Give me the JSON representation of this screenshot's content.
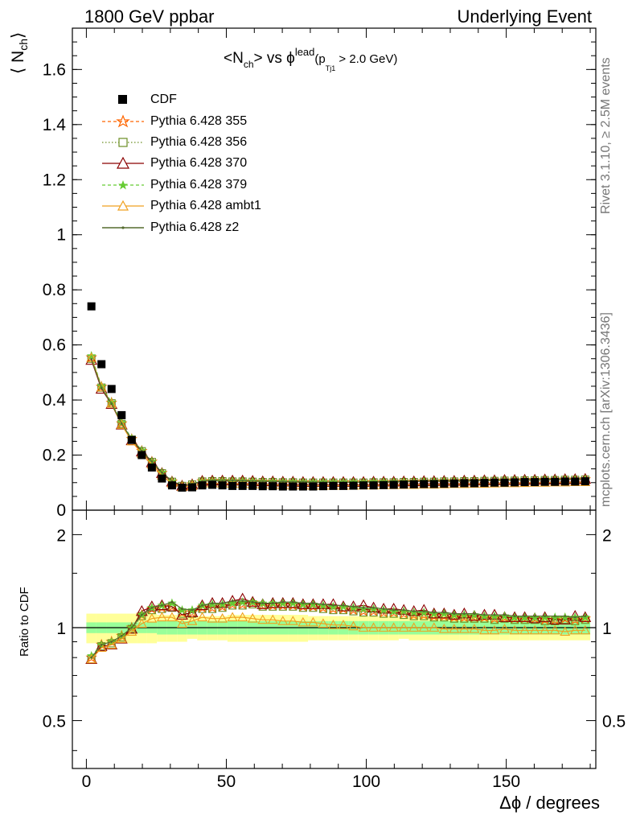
{
  "header": {
    "left_label": "1800 GeV ppbar",
    "right_label": "Underlying Event"
  },
  "side_labels": {
    "rivet": "Rivet 3.1.10, ≥ 2.5M events",
    "mcplots": "mcplots.cern.ch [arXiv:1306.3436]"
  },
  "title": {
    "lhs": "<N",
    "lhs_sub": "ch",
    "mid": "> vs ϕ",
    "mid_sup": "lead",
    "paren_open": "(p",
    "paren_sub": "Tj1",
    "paren_rest": " > 2.0 GeV)"
  },
  "axes": {
    "ylabel_main": "⟨ N",
    "ylabel_main_sub": "ch",
    "ylabel_main_close": "⟩",
    "ylabel_ratio": "Ratio to CDF",
    "xlabel": "Δϕ / degrees"
  },
  "colors": {
    "cdf": "#000000",
    "p355": "#ff6600",
    "p356": "#6b8e23",
    "p370": "#8b0000",
    "p379": "#66cc33",
    "pambt1": "#f0a020",
    "pz2": "#556b2f",
    "band_inner": "#99ff99",
    "band_outer": "#ffff99"
  },
  "chart_data": [
    {
      "type": "scatter",
      "panel": "main",
      "xlim": [
        -5,
        182
      ],
      "ylim": [
        0,
        1.75
      ],
      "yticks": [
        0,
        0.2,
        0.4,
        0.6,
        0.8,
        1,
        1.2,
        1.4,
        1.6
      ],
      "ytick_labels": [
        "0",
        "0.2",
        "0.4",
        "0.6",
        "0.8",
        "1",
        "1.2",
        "1.4",
        "1.6"
      ],
      "x": [
        1.8,
        5.4,
        9,
        12.6,
        16.2,
        19.8,
        23.4,
        27,
        30.6,
        34.2,
        37.8,
        41.4,
        45,
        48.6,
        52.2,
        55.8,
        59.4,
        63,
        66.6,
        70.2,
        73.8,
        77.4,
        81,
        84.6,
        88.2,
        91.8,
        95.4,
        99,
        102.6,
        106.2,
        109.8,
        113.4,
        117,
        120.6,
        124.2,
        127.8,
        131.4,
        135,
        138.6,
        142.2,
        145.8,
        149.4,
        153,
        156.6,
        160.2,
        163.8,
        167.4,
        171,
        174.6,
        178.2
      ],
      "series": [
        {
          "name": "CDF",
          "values": [
            0.74,
            0.53,
            0.44,
            0.345,
            0.255,
            0.2,
            0.155,
            0.115,
            0.09,
            0.082,
            0.083,
            0.09,
            0.092,
            0.09,
            0.088,
            0.088,
            0.088,
            0.087,
            0.087,
            0.086,
            0.086,
            0.086,
            0.086,
            0.087,
            0.088,
            0.088,
            0.089,
            0.09,
            0.09,
            0.091,
            0.092,
            0.093,
            0.094,
            0.095,
            0.095,
            0.096,
            0.097,
            0.098,
            0.098,
            0.099,
            0.1,
            0.1,
            0.101,
            0.102,
            0.102,
            0.103,
            0.103,
            0.104,
            0.104,
            0.105
          ]
        },
        {
          "name": "Pythia 6.428 355",
          "values": [
            0.555,
            0.448,
            0.39,
            0.315,
            0.258,
            0.215,
            0.176,
            0.135,
            0.104,
            0.089,
            0.094,
            0.105,
            0.106,
            0.106,
            0.105,
            0.105,
            0.104,
            0.103,
            0.103,
            0.102,
            0.102,
            0.101,
            0.101,
            0.101,
            0.101,
            0.101,
            0.101,
            0.101,
            0.102,
            0.102,
            0.102,
            0.103,
            0.103,
            0.104,
            0.104,
            0.105,
            0.105,
            0.106,
            0.106,
            0.107,
            0.107,
            0.108,
            0.108,
            0.109,
            0.109,
            0.11,
            0.11,
            0.111,
            0.111,
            0.112
          ]
        },
        {
          "name": "Pythia 6.428 356",
          "values": [
            0.55,
            0.445,
            0.388,
            0.313,
            0.256,
            0.214,
            0.175,
            0.134,
            0.103,
            0.088,
            0.093,
            0.104,
            0.105,
            0.105,
            0.104,
            0.104,
            0.103,
            0.102,
            0.102,
            0.101,
            0.101,
            0.1,
            0.1,
            0.1,
            0.1,
            0.1,
            0.1,
            0.1,
            0.101,
            0.101,
            0.101,
            0.102,
            0.102,
            0.103,
            0.103,
            0.104,
            0.104,
            0.105,
            0.105,
            0.106,
            0.106,
            0.107,
            0.107,
            0.108,
            0.108,
            0.109,
            0.109,
            0.11,
            0.11,
            0.111
          ]
        },
        {
          "name": "Pythia 6.428 370",
          "values": [
            0.545,
            0.44,
            0.385,
            0.31,
            0.253,
            0.212,
            0.173,
            0.134,
            0.103,
            0.088,
            0.093,
            0.106,
            0.107,
            0.107,
            0.107,
            0.107,
            0.106,
            0.104,
            0.104,
            0.103,
            0.103,
            0.102,
            0.102,
            0.102,
            0.102,
            0.102,
            0.102,
            0.102,
            0.103,
            0.103,
            0.103,
            0.104,
            0.104,
            0.105,
            0.105,
            0.106,
            0.106,
            0.107,
            0.107,
            0.108,
            0.108,
            0.109,
            0.109,
            0.11,
            0.11,
            0.111,
            0.111,
            0.112,
            0.112,
            0.113
          ]
        },
        {
          "name": "Pythia 6.428 379",
          "values": [
            0.56,
            0.45,
            0.392,
            0.318,
            0.26,
            0.217,
            0.177,
            0.137,
            0.106,
            0.09,
            0.095,
            0.106,
            0.107,
            0.107,
            0.106,
            0.106,
            0.105,
            0.104,
            0.104,
            0.103,
            0.103,
            0.102,
            0.102,
            0.102,
            0.102,
            0.102,
            0.102,
            0.102,
            0.103,
            0.103,
            0.103,
            0.104,
            0.104,
            0.105,
            0.105,
            0.106,
            0.106,
            0.107,
            0.107,
            0.108,
            0.108,
            0.109,
            0.109,
            0.11,
            0.11,
            0.111,
            0.111,
            0.112,
            0.112,
            0.113
          ]
        },
        {
          "name": "Pythia 6.428 ambt1",
          "values": [
            0.553,
            0.446,
            0.387,
            0.31,
            0.25,
            0.205,
            0.166,
            0.126,
            0.097,
            0.084,
            0.088,
            0.097,
            0.098,
            0.097,
            0.096,
            0.095,
            0.094,
            0.093,
            0.092,
            0.091,
            0.09,
            0.09,
            0.089,
            0.089,
            0.089,
            0.089,
            0.089,
            0.09,
            0.09,
            0.091,
            0.091,
            0.092,
            0.092,
            0.093,
            0.093,
            0.094,
            0.095,
            0.095,
            0.096,
            0.096,
            0.097,
            0.098,
            0.098,
            0.099,
            0.1,
            0.1,
            0.101,
            0.101,
            0.102,
            0.102
          ]
        },
        {
          "name": "Pythia 6.428 z2",
          "values": [
            0.548,
            0.444,
            0.387,
            0.314,
            0.257,
            0.215,
            0.177,
            0.137,
            0.106,
            0.09,
            0.095,
            0.106,
            0.108,
            0.108,
            0.108,
            0.107,
            0.106,
            0.105,
            0.104,
            0.104,
            0.103,
            0.103,
            0.102,
            0.102,
            0.102,
            0.102,
            0.102,
            0.102,
            0.103,
            0.103,
            0.104,
            0.104,
            0.105,
            0.105,
            0.106,
            0.106,
            0.107,
            0.107,
            0.108,
            0.108,
            0.109,
            0.109,
            0.11,
            0.11,
            0.111,
            0.111,
            0.112,
            0.112,
            0.113,
            0.113
          ]
        }
      ]
    },
    {
      "type": "line",
      "panel": "ratio",
      "xlim": [
        -5,
        182
      ],
      "ylim": [
        0.35,
        2.4
      ],
      "log_y": true,
      "yticks": [
        0.5,
        1,
        2
      ],
      "ytick_labels": [
        "0.5",
        "1",
        "2"
      ],
      "xticks": [
        0,
        50,
        100,
        150
      ],
      "xtick_labels": [
        "0",
        "50",
        "100",
        "150"
      ],
      "band_inner_halfwidth": [
        0.04,
        0.04,
        0.04,
        0.04,
        0.04,
        0.04,
        0.04,
        0.05,
        0.05,
        0.05,
        0.05,
        0.05,
        0.05,
        0.05,
        0.05,
        0.05,
        0.05,
        0.05,
        0.05,
        0.05,
        0.05,
        0.05,
        0.05,
        0.05,
        0.05,
        0.05,
        0.05,
        0.05,
        0.05,
        0.05,
        0.05,
        0.05,
        0.05,
        0.05,
        0.05,
        0.05,
        0.05,
        0.05,
        0.05,
        0.05,
        0.05,
        0.05,
        0.05,
        0.05,
        0.05,
        0.05,
        0.05,
        0.05,
        0.05,
        0.05
      ],
      "band_outer_halfwidth": [
        0.11,
        0.11,
        0.11,
        0.11,
        0.11,
        0.11,
        0.11,
        0.1,
        0.1,
        0.1,
        0.08,
        0.09,
        0.09,
        0.09,
        0.1,
        0.1,
        0.1,
        0.1,
        0.1,
        0.1,
        0.1,
        0.1,
        0.09,
        0.09,
        0.09,
        0.09,
        0.09,
        0.09,
        0.09,
        0.09,
        0.09,
        0.08,
        0.09,
        0.09,
        0.09,
        0.09,
        0.09,
        0.09,
        0.09,
        0.09,
        0.09,
        0.09,
        0.09,
        0.09,
        0.09,
        0.09,
        0.09,
        0.09,
        0.09,
        0.09
      ],
      "series": [
        {
          "name": "Pythia 6.428 355",
          "values": [
            0.8,
            0.88,
            0.9,
            0.94,
            1.0,
            1.1,
            1.15,
            1.16,
            1.17,
            1.12,
            1.12,
            1.16,
            1.16,
            1.17,
            1.19,
            1.19,
            1.2,
            1.18,
            1.18,
            1.18,
            1.18,
            1.17,
            1.17,
            1.16,
            1.15,
            1.15,
            1.14,
            1.13,
            1.13,
            1.12,
            1.12,
            1.11,
            1.1,
            1.1,
            1.09,
            1.09,
            1.08,
            1.08,
            1.08,
            1.08,
            1.07,
            1.08,
            1.07,
            1.07,
            1.07,
            1.06,
            1.06,
            1.07,
            1.06,
            1.07
          ]
        },
        {
          "name": "Pythia 6.428 356",
          "values": [
            0.79,
            0.87,
            0.89,
            0.93,
            0.99,
            1.09,
            1.14,
            1.15,
            1.16,
            1.11,
            1.11,
            1.15,
            1.15,
            1.16,
            1.18,
            1.18,
            1.19,
            1.17,
            1.17,
            1.17,
            1.17,
            1.16,
            1.16,
            1.15,
            1.14,
            1.14,
            1.13,
            1.12,
            1.12,
            1.11,
            1.11,
            1.1,
            1.09,
            1.09,
            1.08,
            1.08,
            1.07,
            1.07,
            1.07,
            1.07,
            1.06,
            1.07,
            1.06,
            1.06,
            1.06,
            1.05,
            1.05,
            1.06,
            1.05,
            1.06
          ]
        },
        {
          "name": "Pythia 6.428 370",
          "values": [
            0.79,
            0.87,
            0.88,
            0.92,
            0.99,
            1.13,
            1.17,
            1.18,
            1.17,
            1.1,
            1.12,
            1.18,
            1.2,
            1.2,
            1.22,
            1.24,
            1.21,
            1.19,
            1.2,
            1.2,
            1.2,
            1.19,
            1.19,
            1.19,
            1.19,
            1.17,
            1.17,
            1.18,
            1.16,
            1.15,
            1.15,
            1.14,
            1.13,
            1.14,
            1.11,
            1.11,
            1.1,
            1.11,
            1.09,
            1.1,
            1.1,
            1.08,
            1.08,
            1.08,
            1.07,
            1.08,
            1.06,
            1.06,
            1.09,
            1.08
          ]
        },
        {
          "name": "Pythia 6.428 379",
          "values": [
            0.81,
            0.88,
            0.9,
            0.94,
            1.0,
            1.1,
            1.16,
            1.18,
            1.2,
            1.14,
            1.14,
            1.18,
            1.19,
            1.19,
            1.2,
            1.21,
            1.21,
            1.2,
            1.2,
            1.2,
            1.2,
            1.19,
            1.19,
            1.18,
            1.17,
            1.17,
            1.16,
            1.15,
            1.15,
            1.14,
            1.13,
            1.13,
            1.12,
            1.12,
            1.11,
            1.11,
            1.1,
            1.1,
            1.1,
            1.09,
            1.09,
            1.09,
            1.08,
            1.08,
            1.08,
            1.08,
            1.08,
            1.08,
            1.08,
            1.08
          ]
        },
        {
          "name": "Pythia 6.428 ambt1",
          "values": [
            0.79,
            0.86,
            0.88,
            0.92,
            0.97,
            1.03,
            1.07,
            1.08,
            1.08,
            1.03,
            1.05,
            1.08,
            1.07,
            1.07,
            1.08,
            1.08,
            1.07,
            1.06,
            1.06,
            1.05,
            1.05,
            1.04,
            1.04,
            1.03,
            1.02,
            1.02,
            1.01,
            1.0,
            1.0,
            1.0,
            1.0,
            1.0,
            1.0,
            1.0,
            1.0,
            0.99,
            0.99,
            0.99,
            0.99,
            0.98,
            0.98,
            0.99,
            0.98,
            0.98,
            0.98,
            0.98,
            0.98,
            0.97,
            0.98,
            0.98
          ]
        },
        {
          "name": "Pythia 6.428 z2",
          "values": [
            0.8,
            0.88,
            0.9,
            0.94,
            1.0,
            1.1,
            1.16,
            1.18,
            1.21,
            1.15,
            1.14,
            1.18,
            1.2,
            1.2,
            1.22,
            1.22,
            1.21,
            1.2,
            1.2,
            1.21,
            1.21,
            1.2,
            1.2,
            1.19,
            1.18,
            1.18,
            1.17,
            1.16,
            1.16,
            1.15,
            1.14,
            1.14,
            1.13,
            1.13,
            1.12,
            1.12,
            1.11,
            1.11,
            1.11,
            1.1,
            1.1,
            1.1,
            1.09,
            1.09,
            1.09,
            1.09,
            1.09,
            1.09,
            1.08,
            1.09
          ]
        }
      ]
    }
  ]
}
